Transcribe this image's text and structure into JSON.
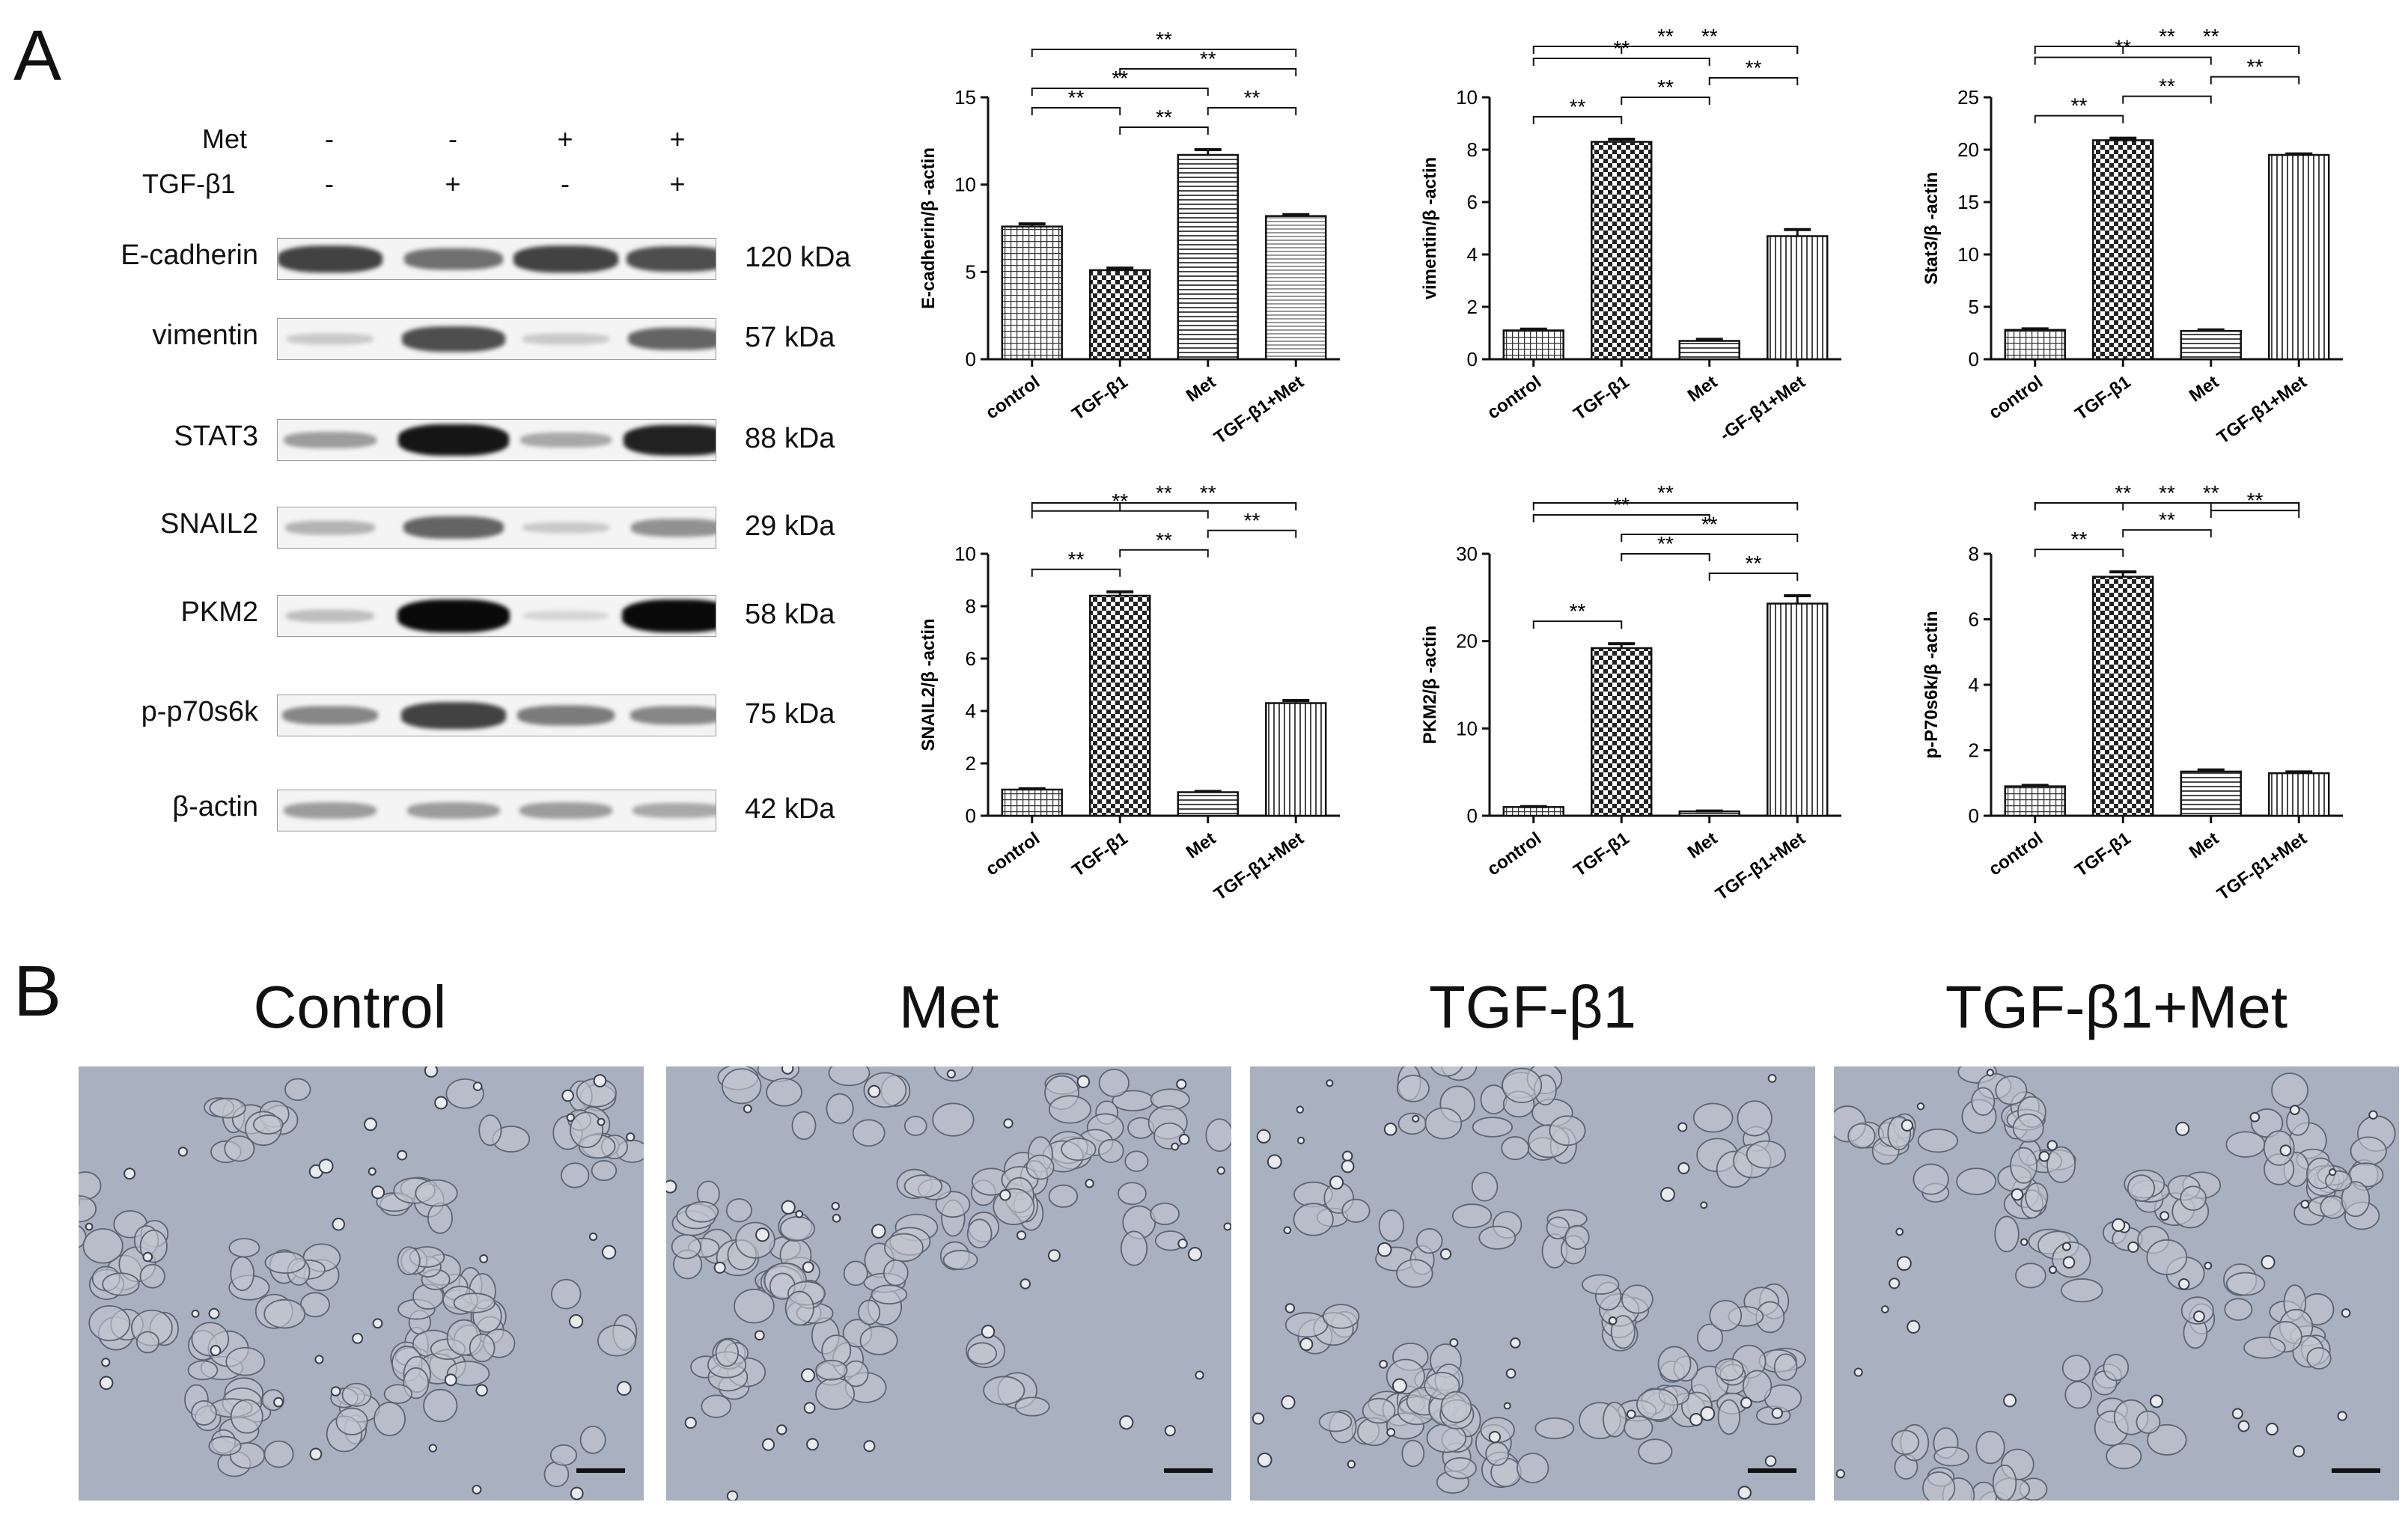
{
  "panel_labels": {
    "a": "A",
    "b": "B"
  },
  "western_blot": {
    "treatment_rows": [
      {
        "name": "Met",
        "signs": [
          "-",
          "-",
          "+",
          "+"
        ]
      },
      {
        "name": "TGF-β1",
        "signs": [
          "-",
          "+",
          "-",
          "+"
        ]
      }
    ],
    "proteins": [
      {
        "name": "E-cadherin",
        "kda": "120 kDa",
        "intensity": [
          0.75,
          0.55,
          0.75,
          0.7
        ]
      },
      {
        "name": "vimentin",
        "kda": "57 kDa",
        "intensity": [
          0.15,
          0.7,
          0.15,
          0.6
        ]
      },
      {
        "name": "STAT3",
        "kda": "88 kDa",
        "intensity": [
          0.35,
          0.95,
          0.3,
          0.9
        ]
      },
      {
        "name": "SNAIL2",
        "kda": "29 kDa",
        "intensity": [
          0.25,
          0.6,
          0.15,
          0.4
        ]
      },
      {
        "name": "PKM2",
        "kda": "58 kDa",
        "intensity": [
          0.2,
          1.0,
          0.1,
          1.0
        ]
      },
      {
        "name": "p-p70s6k",
        "kda": "75 kDa",
        "intensity": [
          0.45,
          0.75,
          0.5,
          0.45
        ]
      },
      {
        "name": "β-actin",
        "kda": "42 kDa",
        "intensity": [
          0.35,
          0.35,
          0.35,
          0.3
        ]
      }
    ]
  },
  "chart_data": [
    {
      "type": "bar",
      "categories": [
        "control",
        "TGF-β1",
        "Met",
        "TGF-β1+Met"
      ],
      "values": [
        7.6,
        5.1,
        11.7,
        8.2
      ],
      "errors": [
        0.15,
        0.12,
        0.3,
        0.08
      ],
      "ylabel": "E-cadherin/β -actin",
      "ylim": [
        0,
        15
      ],
      "yticks": [
        0,
        5,
        10,
        15
      ],
      "patterns": [
        "grid",
        "check",
        "hstripe",
        "hstripe-thin"
      ],
      "significance": [
        {
          "from": 0,
          "to": 3,
          "label": "**"
        },
        {
          "from": 0,
          "to": 2,
          "label": "**"
        },
        {
          "from": 1,
          "to": 3,
          "label": "**"
        },
        {
          "from": 1,
          "to": 2,
          "label": "**"
        },
        {
          "from": 2,
          "to": 3,
          "label": "**"
        },
        {
          "from": 0,
          "to": 1,
          "label": "**"
        }
      ]
    },
    {
      "type": "bar",
      "categories": [
        "control",
        "TGF-β1",
        "Met",
        "-GF-β1+Met"
      ],
      "values": [
        1.1,
        8.3,
        0.7,
        4.7
      ],
      "errors": [
        0.05,
        0.1,
        0.06,
        0.25
      ],
      "ylabel": "vimentin/β -actin",
      "ylim": [
        0,
        10
      ],
      "yticks": [
        0,
        2,
        4,
        6,
        8,
        10
      ],
      "patterns": [
        "grid",
        "check",
        "hstripe",
        "vstripe"
      ],
      "significance": [
        {
          "from": 0,
          "to": 3,
          "label": "**"
        },
        {
          "from": 0,
          "to": 2,
          "label": "**"
        },
        {
          "from": 1,
          "to": 3,
          "label": "**"
        },
        {
          "from": 0,
          "to": 1,
          "label": "**"
        },
        {
          "from": 1,
          "to": 2,
          "label": "**"
        },
        {
          "from": 2,
          "to": 3,
          "label": "**"
        }
      ]
    },
    {
      "type": "bar",
      "categories": [
        "control",
        "TGF-β1",
        "Met",
        "TGF-β1+Met"
      ],
      "values": [
        2.8,
        20.9,
        2.7,
        19.5
      ],
      "errors": [
        0.1,
        0.2,
        0.1,
        0.1
      ],
      "ylabel": "Stat3/β -actin",
      "ylim": [
        0,
        25
      ],
      "yticks": [
        0,
        5,
        10,
        15,
        20,
        25
      ],
      "patterns": [
        "grid",
        "check",
        "hstripe",
        "vstripe"
      ],
      "significance": [
        {
          "from": 0,
          "to": 3,
          "label": "**"
        },
        {
          "from": 0,
          "to": 2,
          "label": "**"
        },
        {
          "from": 1,
          "to": 3,
          "label": "**"
        },
        {
          "from": 0,
          "to": 1,
          "label": "**"
        },
        {
          "from": 1,
          "to": 2,
          "label": "**"
        },
        {
          "from": 2,
          "to": 3,
          "label": "**"
        }
      ]
    },
    {
      "type": "bar",
      "categories": [
        "control",
        "TGF-β1",
        "Met",
        "TGF-β1+Met"
      ],
      "values": [
        1.0,
        8.4,
        0.9,
        4.3
      ],
      "errors": [
        0.03,
        0.15,
        0.03,
        0.1
      ],
      "ylabel": "SNAIL2/β -actin",
      "ylim": [
        0,
        10
      ],
      "yticks": [
        0,
        2,
        4,
        6,
        8,
        10
      ],
      "patterns": [
        "grid",
        "check",
        "hstripe",
        "vstripe"
      ],
      "significance": [
        {
          "from": 0,
          "to": 3,
          "label": "**"
        },
        {
          "from": 0,
          "to": 2,
          "label": "**"
        },
        {
          "from": 1,
          "to": 3,
          "label": "**"
        },
        {
          "from": 0,
          "to": 1,
          "label": "**"
        },
        {
          "from": 1,
          "to": 2,
          "label": "**"
        },
        {
          "from": 2,
          "to": 3,
          "label": "**"
        }
      ]
    },
    {
      "type": "bar",
      "categories": [
        "control",
        "TGF-β1",
        "Met",
        "TGF-β1+Met"
      ],
      "values": [
        1.0,
        19.2,
        0.5,
        24.3
      ],
      "errors": [
        0.05,
        0.5,
        0.05,
        0.9
      ],
      "ylabel": "PKM2/β -actin",
      "ylim": [
        0,
        30
      ],
      "yticks": [
        0,
        10,
        20,
        30
      ],
      "patterns": [
        "grid",
        "check",
        "hstripe",
        "vstripe"
      ],
      "significance": [
        {
          "from": 0,
          "to": 3,
          "label": "**"
        },
        {
          "from": 1,
          "to": 3,
          "label": "**"
        },
        {
          "from": 0,
          "to": 2,
          "label": "**"
        },
        {
          "from": 2,
          "to": 3,
          "label": "**"
        },
        {
          "from": 0,
          "to": 1,
          "label": "**"
        },
        {
          "from": 1,
          "to": 2,
          "label": "**"
        }
      ]
    },
    {
      "type": "bar",
      "categories": [
        "control",
        "TGF-β1",
        "Met",
        "TGF-β1+Met"
      ],
      "values": [
        0.9,
        7.3,
        1.35,
        1.3
      ],
      "errors": [
        0.03,
        0.15,
        0.05,
        0.04
      ],
      "ylabel": "p-P70s6k/β -actin",
      "ylim": [
        0,
        8
      ],
      "yticks": [
        0,
        2,
        4,
        6,
        8
      ],
      "patterns": [
        "grid",
        "check",
        "hstripe",
        "vstripe"
      ],
      "significance": [
        {
          "from": 0,
          "to": 3,
          "label": "**"
        },
        {
          "from": 0,
          "to": 2,
          "label": "**"
        },
        {
          "from": 1,
          "to": 3,
          "label": "**"
        },
        {
          "from": 0,
          "to": 1,
          "label": "**"
        },
        {
          "from": 1,
          "to": 2,
          "label": "**"
        },
        {
          "from": 2,
          "to": 3,
          "label": "**"
        }
      ]
    }
  ],
  "micrographs": [
    {
      "title": "Control"
    },
    {
      "title": "Met"
    },
    {
      "title": "TGF-β1"
    },
    {
      "title": "TGF-β1+Met"
    }
  ],
  "colors": {
    "micrograph_bg": "#a9b0bf",
    "cell_edge": "#5d6574",
    "scale_bar": "#111111"
  }
}
